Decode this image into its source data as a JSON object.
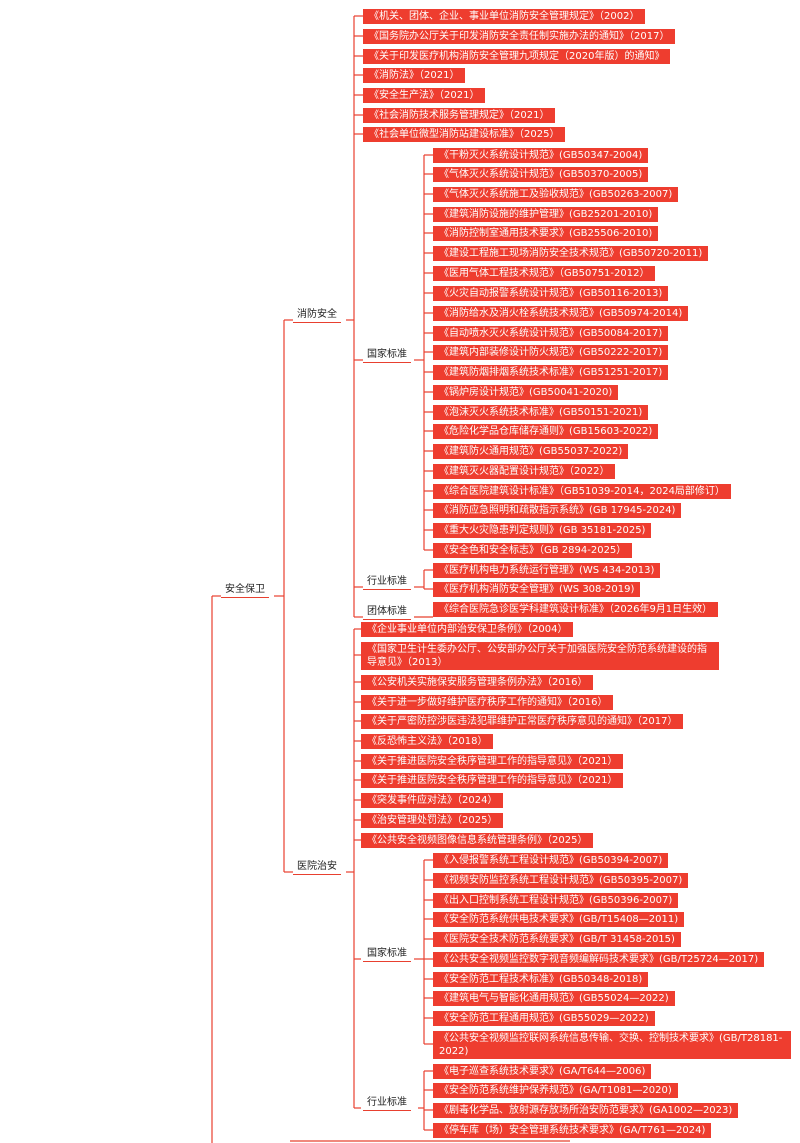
{
  "colors": {
    "accent": "#ee3d2f",
    "line": "#e8402f"
  },
  "tree": {
    "label": "安全保卫",
    "children": [
      {
        "label": "消防安全",
        "children": [
          {
            "label": "《机关、团体、企业、事业单位消防安全管理规定》（2002）"
          },
          {
            "label": "《国务院办公厅关于印发消防安全责任制实施办法的通知》（2017）"
          },
          {
            "label": "《关于印发医疗机构消防安全管理九项规定（2020年版）的通知》"
          },
          {
            "label": "《消防法》（2021）"
          },
          {
            "label": "《安全生产法》（2021）"
          },
          {
            "label": "《社会消防技术服务管理规定》（2021）"
          },
          {
            "label": "《社会单位微型消防站建设标准》（2025）"
          },
          {
            "label": "国家标准",
            "children": [
              {
                "label": "《干粉灭火系统设计规范》(GB50347-2004)"
              },
              {
                "label": "《气体灭火系统设计规范》(GB50370-2005)"
              },
              {
                "label": "《气体灭火系统施工及验收规范》(GB50263-2007)"
              },
              {
                "label": "《建筑消防设施的维护管理》(GB25201-2010)"
              },
              {
                "label": "《消防控制室通用技术要求》(GB25506-2010)"
              },
              {
                "label": "《建设工程施工现场消防安全技术规范》(GB50720-2011)"
              },
              {
                "label": "《医用气体工程技术规范》（GB50751-2012）"
              },
              {
                "label": "《火灾自动报警系统设计规范》(GB50116-2013)"
              },
              {
                "label": "《消防给水及消火栓系统技术规范》(GB50974-2014)"
              },
              {
                "label": "《自动喷水灭火系统设计规范》(GB50084-2017)"
              },
              {
                "label": "《建筑内部装修设计防火规范》(GB50222-2017)"
              },
              {
                "label": "《建筑防烟排烟系统技术标准》(GB51251-2017)"
              },
              {
                "label": "《锅炉房设计规范》(GB50041-2020)"
              },
              {
                "label": "《泡沫灭火系统技术标准》(GB50151-2021)"
              },
              {
                "label": "《危险化学品仓库储存通则》(GB15603-2022)"
              },
              {
                "label": "《建筑防火通用规范》(GB55037-2022)"
              },
              {
                "label": "《建筑灭火器配置设计规范》（2022）"
              },
              {
                "label": "《综合医院建筑设计标准》（GB51039-2014，2024局部修订）"
              },
              {
                "label": "《消防应急照明和疏散指示系统》(GB 17945-2024)"
              },
              {
                "label": "《重大火灾隐患判定规则》(GB 35181-2025)"
              },
              {
                "label": "《安全色和安全标志》（GB 2894-2025）"
              }
            ]
          },
          {
            "label": "行业标准",
            "children": [
              {
                "label": "《医疗机构电力系统运行管理》(WS 434-2013)"
              },
              {
                "label": "《医疗机构消防安全管理》(WS 308-2019)"
              }
            ]
          },
          {
            "label": "团体标准",
            "children": [
              {
                "label": "《综合医院急诊医学科建筑设计标准》（2026年9月1日生效）"
              }
            ]
          }
        ]
      },
      {
        "label": "医院治安",
        "children": [
          {
            "label": "《企业事业单位内部治安保卫条例》（2004）"
          },
          {
            "label": "《国家卫生计生委办公厅、公安部办公厅关于加强医院安全防范系统建设的指导意见》（2013）"
          },
          {
            "label": "《公安机关实施保安服务管理条例办法》（2016）"
          },
          {
            "label": "《关于进一步做好维护医疗秩序工作的通知》（2016）"
          },
          {
            "label": "《关于严密防控涉医违法犯罪维护正常医疗秩序意见的通知》（2017）"
          },
          {
            "label": "《反恐怖主义法》（2018）"
          },
          {
            "label": "《关于推进医院安全秩序管理工作的指导意见》（2021）"
          },
          {
            "label": "《关于推进医院安全秩序管理工作的指导意见》（2021）"
          },
          {
            "label": "《突发事件应对法》（2024）"
          },
          {
            "label": "《治安管理处罚法》（2025）"
          },
          {
            "label": "《公共安全视频图像信息系统管理条例》（2025）"
          },
          {
            "label": "国家标准",
            "children": [
              {
                "label": "《入侵报警系统工程设计规范》(GB50394-2007)"
              },
              {
                "label": "《视频安防监控系统工程设计规范》(GB50395-2007)"
              },
              {
                "label": "《出入口控制系统工程设计规范》(GB50396-2007)"
              },
              {
                "label": "《安全防范系统供电技术要求》(GB/T15408—2011)"
              },
              {
                "label": "《医院安全技术防范系统要求》(GB/T 31458-2015)"
              },
              {
                "label": "《公共安全视频监控数字视音频编解码技术要求》(GB/T25724—2017)"
              },
              {
                "label": "《安全防范工程技术标准》(GB50348-2018)"
              },
              {
                "label": "《建筑电气与智能化通用规范》(GB55024—2022)"
              },
              {
                "label": "《安全防范工程通用规范》(GB55029—2022)"
              },
              {
                "label": "《公共安全视频监控联网系统信息传输、交换、控制技术要求》(GB/T28181-2022)"
              }
            ]
          },
          {
            "label": "行业标准",
            "children": [
              {
                "label": "《电子巡查系统技术要求》(GA/T644—2006)"
              },
              {
                "label": "《安全防范系统维护保养规范》(GA/T1081—2020)"
              },
              {
                "label": "《剧毒化学品、放射源存放场所治安防范要求》(GA1002—2023)"
              },
              {
                "label": "《停车库（场）安全管理系统技术要求》(GA/T761—2024)"
              }
            ]
          }
        ]
      }
    ]
  }
}
